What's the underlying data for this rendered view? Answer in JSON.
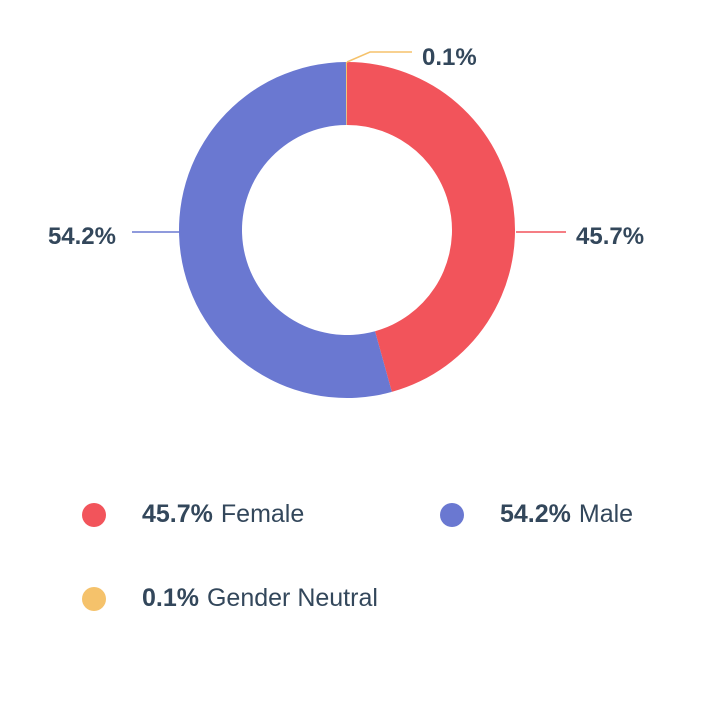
{
  "chart_data": {
    "type": "pie",
    "donut": true,
    "title": "",
    "slices": [
      {
        "label": "Female",
        "value": 45.7,
        "display": "45.7%",
        "color": "#f2545b"
      },
      {
        "label": "Male",
        "value": 54.2,
        "display": "54.2%",
        "color": "#6a78d1"
      },
      {
        "label": "Gender Neutral",
        "value": 0.1,
        "display": "0.1%",
        "color": "#f5c26b"
      }
    ],
    "legend_placement": "bottom"
  },
  "legend": {
    "female": {
      "pct": "45.7%",
      "label": "Female",
      "color": "#f2545b"
    },
    "male": {
      "pct": "54.2%",
      "label": "Male",
      "color": "#6a78d1"
    },
    "neutral": {
      "pct": "0.1%",
      "label": "Gender Neutral",
      "color": "#f5c26b"
    }
  }
}
